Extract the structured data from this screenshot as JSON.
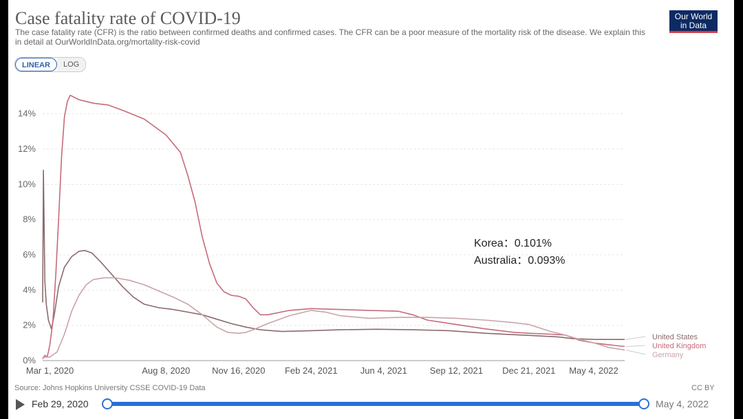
{
  "header": {
    "title": "Case fatality rate of COVID-19",
    "subtitle": "The case fatality rate (CFR) is the ratio between confirmed deaths and confirmed cases. The CFR can be a poor measure of the mortality risk of the disease. We explain this in detail at OurWorldInData.org/mortality-risk-covid",
    "logo_line1": "Our World",
    "logo_line2": "in Data"
  },
  "scale_toggle": {
    "linear": "LINEAR",
    "log": "LOG",
    "selected": "LINEAR"
  },
  "footer": {
    "source": "Source: Johns Hopkins University CSSE COVID-19 Data",
    "license": "CC BY",
    "start_date": "Feb 29, 2020",
    "end_date": "May 4, 2022"
  },
  "chart_data": {
    "type": "line",
    "title": "Case fatality rate of COVID-19",
    "xlabel": "",
    "ylabel": "",
    "ylim": [
      0,
      15
    ],
    "xlim": [
      -10,
      792
    ],
    "y_ticks": [
      0,
      2,
      4,
      6,
      8,
      10,
      12,
      14
    ],
    "y_tick_labels": [
      "0%",
      "2%",
      "4%",
      "6%",
      "8%",
      "10%",
      "12%",
      "14%"
    ],
    "x_ticks": [
      0,
      160,
      260,
      360,
      460,
      560,
      660,
      795
    ],
    "x_tick_labels": [
      "Mar 1, 2020",
      "Aug 8, 2020",
      "Nov 16, 2020",
      "Feb 24, 2021",
      "Jun 4, 2021",
      "Sep 12, 2021",
      "Dec 21, 2021",
      "May 4, 2022"
    ],
    "x_unit": "days since Mar 1, 2020",
    "grid": true,
    "legend_placement": "right, labels at line ends",
    "annotations": [
      "Korea：0.101%",
      "Australia：0.093%"
    ],
    "series": [
      {
        "name": "United States",
        "color": "#8a6a6e",
        "points": [
          [
            -10,
            3.3
          ],
          [
            -9,
            10.8
          ],
          [
            -7,
            4.5
          ],
          [
            -5,
            3.2
          ],
          [
            -2,
            2.3
          ],
          [
            2,
            1.8
          ],
          [
            6,
            2.6
          ],
          [
            12,
            4.2
          ],
          [
            20,
            5.3
          ],
          [
            30,
            5.9
          ],
          [
            40,
            6.2
          ],
          [
            48,
            6.25
          ],
          [
            58,
            6.1
          ],
          [
            70,
            5.6
          ],
          [
            85,
            4.9
          ],
          [
            100,
            4.2
          ],
          [
            115,
            3.6
          ],
          [
            130,
            3.2
          ],
          [
            150,
            3.0
          ],
          [
            170,
            2.9
          ],
          [
            190,
            2.75
          ],
          [
            210,
            2.6
          ],
          [
            230,
            2.35
          ],
          [
            250,
            2.1
          ],
          [
            270,
            1.9
          ],
          [
            290,
            1.75
          ],
          [
            320,
            1.65
          ],
          [
            360,
            1.7
          ],
          [
            400,
            1.75
          ],
          [
            450,
            1.78
          ],
          [
            500,
            1.75
          ],
          [
            550,
            1.7
          ],
          [
            600,
            1.55
          ],
          [
            650,
            1.45
          ],
          [
            700,
            1.35
          ],
          [
            720,
            1.25
          ],
          [
            750,
            1.2
          ],
          [
            792,
            1.2
          ]
        ]
      },
      {
        "name": "United Kingdom",
        "color": "#c66a7a",
        "points": [
          [
            -10,
            0.1
          ],
          [
            -7,
            0.3
          ],
          [
            -4,
            0.2
          ],
          [
            -2,
            0.5
          ],
          [
            0,
            0.9
          ],
          [
            4,
            2.2
          ],
          [
            8,
            4.8
          ],
          [
            12,
            8.0
          ],
          [
            16,
            11.5
          ],
          [
            20,
            13.8
          ],
          [
            24,
            14.7
          ],
          [
            28,
            15.05
          ],
          [
            40,
            14.8
          ],
          [
            60,
            14.6
          ],
          [
            80,
            14.5
          ],
          [
            100,
            14.2
          ],
          [
            130,
            13.7
          ],
          [
            160,
            12.8
          ],
          [
            180,
            11.8
          ],
          [
            190,
            10.5
          ],
          [
            200,
            9.0
          ],
          [
            210,
            7.0
          ],
          [
            220,
            5.5
          ],
          [
            230,
            4.4
          ],
          [
            240,
            3.9
          ],
          [
            250,
            3.7
          ],
          [
            260,
            3.65
          ],
          [
            270,
            3.5
          ],
          [
            280,
            3.0
          ],
          [
            290,
            2.6
          ],
          [
            300,
            2.6
          ],
          [
            330,
            2.85
          ],
          [
            360,
            2.95
          ],
          [
            400,
            2.9
          ],
          [
            440,
            2.85
          ],
          [
            480,
            2.8
          ],
          [
            500,
            2.6
          ],
          [
            520,
            2.3
          ],
          [
            560,
            2.05
          ],
          [
            600,
            1.8
          ],
          [
            640,
            1.6
          ],
          [
            660,
            1.55
          ],
          [
            690,
            1.5
          ],
          [
            710,
            1.45
          ],
          [
            730,
            1.15
          ],
          [
            750,
            1.0
          ],
          [
            770,
            0.9
          ],
          [
            792,
            0.8
          ]
        ]
      },
      {
        "name": "Germany",
        "color": "#c8a4a8",
        "points": [
          [
            -10,
            0.2
          ],
          [
            0,
            0.2
          ],
          [
            10,
            0.5
          ],
          [
            20,
            1.5
          ],
          [
            30,
            2.8
          ],
          [
            40,
            3.7
          ],
          [
            50,
            4.3
          ],
          [
            60,
            4.6
          ],
          [
            75,
            4.7
          ],
          [
            90,
            4.7
          ],
          [
            110,
            4.55
          ],
          [
            130,
            4.3
          ],
          [
            150,
            3.95
          ],
          [
            170,
            3.6
          ],
          [
            190,
            3.2
          ],
          [
            210,
            2.6
          ],
          [
            230,
            1.9
          ],
          [
            245,
            1.6
          ],
          [
            260,
            1.55
          ],
          [
            270,
            1.6
          ],
          [
            280,
            1.75
          ],
          [
            300,
            2.1
          ],
          [
            330,
            2.55
          ],
          [
            360,
            2.85
          ],
          [
            380,
            2.75
          ],
          [
            400,
            2.55
          ],
          [
            440,
            2.4
          ],
          [
            480,
            2.45
          ],
          [
            520,
            2.45
          ],
          [
            560,
            2.4
          ],
          [
            600,
            2.3
          ],
          [
            640,
            2.15
          ],
          [
            660,
            2.05
          ],
          [
            690,
            1.65
          ],
          [
            710,
            1.45
          ],
          [
            730,
            1.2
          ],
          [
            750,
            1.0
          ],
          [
            770,
            0.75
          ],
          [
            792,
            0.6
          ]
        ]
      }
    ]
  }
}
